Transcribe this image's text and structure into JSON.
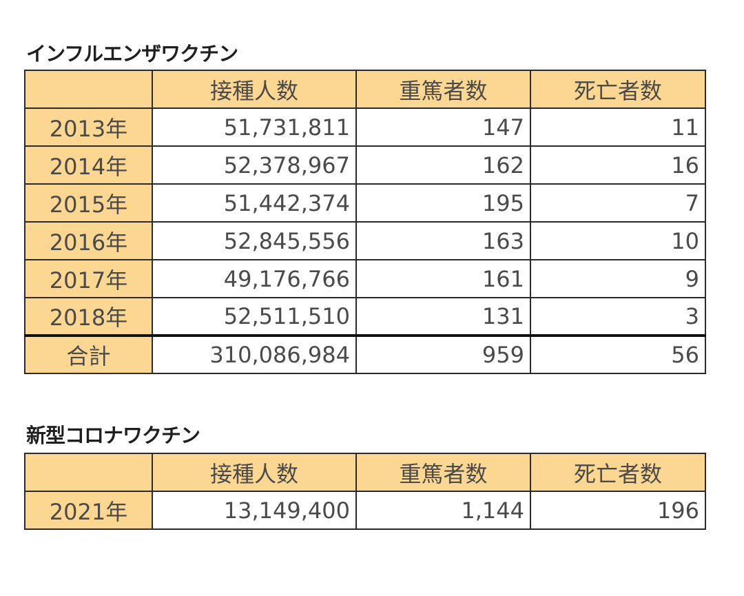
{
  "flu": {
    "title": "インフルエンザワクチン",
    "headers": [
      "",
      "接種人数",
      "重篤者数",
      "死亡者数"
    ],
    "rows": [
      {
        "year": "2013年",
        "vaccinated": "51,731,811",
        "serious": "147",
        "deaths": "11"
      },
      {
        "year": "2014年",
        "vaccinated": "52,378,967",
        "serious": "162",
        "deaths": "16"
      },
      {
        "year": "2015年",
        "vaccinated": "51,442,374",
        "serious": "195",
        "deaths": "7"
      },
      {
        "year": "2016年",
        "vaccinated": "52,845,556",
        "serious": "163",
        "deaths": "10"
      },
      {
        "year": "2017年",
        "vaccinated": "49,176,766",
        "serious": "161",
        "deaths": "9"
      },
      {
        "year": "2018年",
        "vaccinated": "52,511,510",
        "serious": "131",
        "deaths": "3"
      }
    ],
    "total": {
      "label": "合計",
      "vaccinated": "310,086,984",
      "serious": "959",
      "deaths": "56"
    }
  },
  "covid": {
    "title": "新型コロナワクチン",
    "headers": [
      "",
      "接種人数",
      "重篤者数",
      "死亡者数"
    ],
    "rows": [
      {
        "year": "2021年",
        "vaccinated": "13,149,400",
        "serious": "1,144",
        "deaths": "196"
      }
    ]
  },
  "colors": {
    "header_fill": "#fcd792",
    "border": "#2a2a2a",
    "text": "#4a4a4a"
  }
}
